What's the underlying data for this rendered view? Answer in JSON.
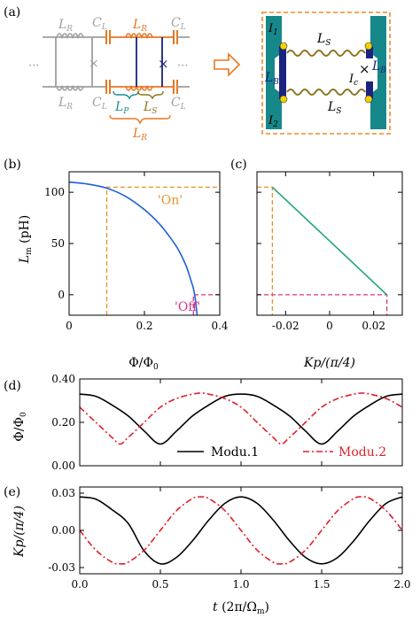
{
  "panel_labels": {
    "a": "(a)",
    "b": "(b)",
    "c": "(c)",
    "d": "(d)",
    "e": "(e)"
  },
  "circuit": {
    "left": {
      "LR_top": "L",
      "LR_top_sub": "R",
      "LR_bot": "L",
      "LR_bot_sub": "R",
      "CL1": "C",
      "CL1_sub": "L",
      "CL1b": "C",
      "CL1b_sub": "L",
      "LR_mid": "L",
      "LR_mid_sub": "R",
      "CL2": "C",
      "CL2_sub": "L",
      "CL2b": "C",
      "CL2b_sub": "L",
      "LP": "L",
      "LP_sub": "P",
      "LS": "L",
      "LS_sub": "S",
      "LR_brace": "L",
      "LR_brace_sub": "R",
      "dots": "···"
    },
    "right": {
      "I1": "I",
      "I1_sub": "1",
      "I2": "I",
      "I2_sub": "2",
      "LS_top": "L",
      "LS_top_sub": "S",
      "LS_bot": "L",
      "LS_bot_sub": "S",
      "LB_left": "L",
      "LB_left_sub": "B",
      "LB_right": "L",
      "LB_right_sub": "B",
      "Ic": "I",
      "Ic_sub": "c"
    },
    "colors": {
      "gray": "#9e9e9e",
      "orange": "#e87722",
      "navy": "#1a237e",
      "teal": "#1a8c8c",
      "olive": "#8b7420",
      "box_border": "#f08a24"
    }
  },
  "chart_data": [
    {
      "id": "b",
      "type": "line",
      "xlabel": "Φ/Φ",
      "xlabel_sub": "0",
      "ylabel": "L",
      "ylabel_sub": "m",
      "ylabel_unit": " (pH)",
      "xlim": [
        0,
        0.4
      ],
      "ylim": [
        -20,
        120
      ],
      "xticks": [
        0,
        0.2,
        0.4
      ],
      "xticklabels": [
        "0",
        "0.2",
        "0.4"
      ],
      "yticks": [
        0,
        50,
        100
      ],
      "yticklabels": [
        "0",
        "50",
        "100"
      ],
      "series": [
        {
          "color": "#1f5fd6",
          "x": [
            0,
            0.05,
            0.1,
            0.15,
            0.2,
            0.24,
            0.27,
            0.29,
            0.31,
            0.32,
            0.33,
            0.335,
            0.34
          ],
          "y": [
            110,
            108,
            104,
            96,
            83,
            69,
            55,
            44,
            29,
            18,
            6,
            -4,
            -20
          ]
        }
      ],
      "annotations": [
        {
          "text": "'On'",
          "x": 0.235,
          "y": 104,
          "color": "#e8922a"
        },
        {
          "text": "'Off'",
          "x": 0.28,
          "y": 0,
          "color": "#d63384"
        }
      ],
      "guides": [
        {
          "color": "#e8922a",
          "points": [
            [
              0.1,
              -20
            ],
            [
              0.1,
              105
            ],
            [
              0.4,
              105
            ]
          ]
        },
        {
          "color": "#d63384",
          "points": [
            [
              0.33,
              -20
            ],
            [
              0.33,
              0
            ],
            [
              0.4,
              0
            ]
          ]
        }
      ],
      "grid": false
    },
    {
      "id": "c",
      "type": "line",
      "xlabel": "Kp/(π/4)",
      "xlim": [
        -0.033,
        0.033
      ],
      "ylim": [
        -20,
        120
      ],
      "xticks": [
        -0.02,
        0,
        0.02
      ],
      "xticklabels": [
        "-0.02",
        "0",
        "0.02"
      ],
      "yticks": [],
      "yticklabels": [],
      "series": [
        {
          "color": "#1fa67a",
          "x": [
            -0.026,
            0.026
          ],
          "y": [
            105,
            0
          ]
        }
      ],
      "guides": [
        {
          "color": "#e8922a",
          "points": [
            [
              -0.033,
              105
            ],
            [
              -0.026,
              105
            ],
            [
              -0.026,
              -20
            ]
          ]
        },
        {
          "color": "#d63384",
          "points": [
            [
              -0.033,
              0
            ],
            [
              0.026,
              0
            ],
            [
              0.026,
              -20
            ]
          ]
        }
      ],
      "grid": false
    },
    {
      "id": "d",
      "type": "line",
      "xlabel": "",
      "ylabel": "Φ/Φ",
      "ylabel_sub": "0",
      "xlim": [
        0,
        2
      ],
      "ylim": [
        0,
        0.4
      ],
      "xticks": [
        0,
        0.5,
        1,
        1.5,
        2
      ],
      "xticklabels": [
        "",
        "",
        "",
        "",
        ""
      ],
      "yticks": [
        0,
        0.2,
        0.4
      ],
      "yticklabels": [
        "0.00",
        "0.20",
        "0.40"
      ],
      "series": [
        {
          "name": "Modu.1",
          "color": "#000000",
          "dash": "",
          "x": [
            0,
            0.1,
            0.2,
            0.3,
            0.4,
            0.5,
            0.6,
            0.7,
            0.8,
            0.9,
            1.0,
            1.1,
            1.2,
            1.3,
            1.4,
            1.5,
            1.6,
            1.7,
            1.8,
            1.9,
            2.0
          ],
          "y": [
            0.33,
            0.32,
            0.28,
            0.23,
            0.16,
            0.1,
            0.16,
            0.23,
            0.28,
            0.32,
            0.33,
            0.32,
            0.28,
            0.23,
            0.16,
            0.1,
            0.16,
            0.23,
            0.28,
            0.32,
            0.33
          ]
        },
        {
          "name": "Modu.2",
          "color": "#e0202a",
          "dash": "7,3,2,3",
          "x": [
            0,
            0.1,
            0.2,
            0.25,
            0.3,
            0.4,
            0.5,
            0.6,
            0.7,
            0.75,
            0.8,
            0.9,
            1.0,
            1.1,
            1.2,
            1.25,
            1.3,
            1.4,
            1.5,
            1.6,
            1.7,
            1.75,
            1.8,
            1.9,
            2.0
          ],
          "y": [
            0.27,
            0.2,
            0.13,
            0.1,
            0.13,
            0.2,
            0.27,
            0.31,
            0.33,
            0.335,
            0.33,
            0.31,
            0.27,
            0.2,
            0.13,
            0.1,
            0.13,
            0.2,
            0.27,
            0.31,
            0.33,
            0.335,
            0.33,
            0.31,
            0.27
          ]
        }
      ],
      "legend": "bottom-right",
      "grid": false
    },
    {
      "id": "e",
      "type": "line",
      "xlabel": "t",
      "xlabel_unit": " (2π/Ω",
      "xlabel_sub": "m",
      "xlabel_close": ")",
      "ylabel": "Kp/(π/4)",
      "xlim": [
        0,
        2
      ],
      "ylim": [
        -0.035,
        0.035
      ],
      "xticks": [
        0,
        0.5,
        1,
        1.5,
        2
      ],
      "xticklabels": [
        "0.0",
        "0.5",
        "1.0",
        "1.5",
        "2.0"
      ],
      "yticks": [
        -0.03,
        0,
        0.03
      ],
      "yticklabels": [
        "-0.03",
        "0.00",
        "0.03"
      ],
      "series": [
        {
          "name": "Modu.1",
          "color": "#000000",
          "dash": "",
          "x": [
            0,
            0.1,
            0.2,
            0.3,
            0.4,
            0.5,
            0.6,
            0.7,
            0.8,
            0.9,
            1.0,
            1.1,
            1.2,
            1.3,
            1.4,
            1.5,
            1.6,
            1.7,
            1.8,
            1.9,
            2.0
          ],
          "y": [
            0.027,
            0.0252,
            0.0167,
            0.0057,
            -0.0167,
            -0.027,
            -0.0218,
            -0.0083,
            0.0083,
            0.0218,
            0.027,
            0.0218,
            0.0083,
            -0.0083,
            -0.0218,
            -0.027,
            -0.0218,
            -0.0083,
            0.0083,
            0.0218,
            0.027
          ]
        },
        {
          "name": "Modu.2",
          "color": "#e0202a",
          "dash": "7,3,2,3",
          "x": [
            0,
            0.1,
            0.2,
            0.25,
            0.3,
            0.4,
            0.5,
            0.6,
            0.7,
            0.75,
            0.8,
            0.9,
            1.0,
            1.1,
            1.2,
            1.25,
            1.3,
            1.4,
            1.5,
            1.6,
            1.7,
            1.75,
            1.8,
            1.9,
            2.0
          ],
          "y": [
            0,
            -0.0159,
            -0.0257,
            -0.027,
            -0.0257,
            -0.0159,
            0,
            0.0159,
            0.0257,
            0.027,
            0.0257,
            0.0159,
            0,
            -0.0159,
            -0.0257,
            -0.027,
            -0.0257,
            -0.0159,
            0,
            0.0159,
            0.0257,
            0.027,
            0.0257,
            0.0159,
            0
          ]
        }
      ],
      "grid": false
    }
  ]
}
